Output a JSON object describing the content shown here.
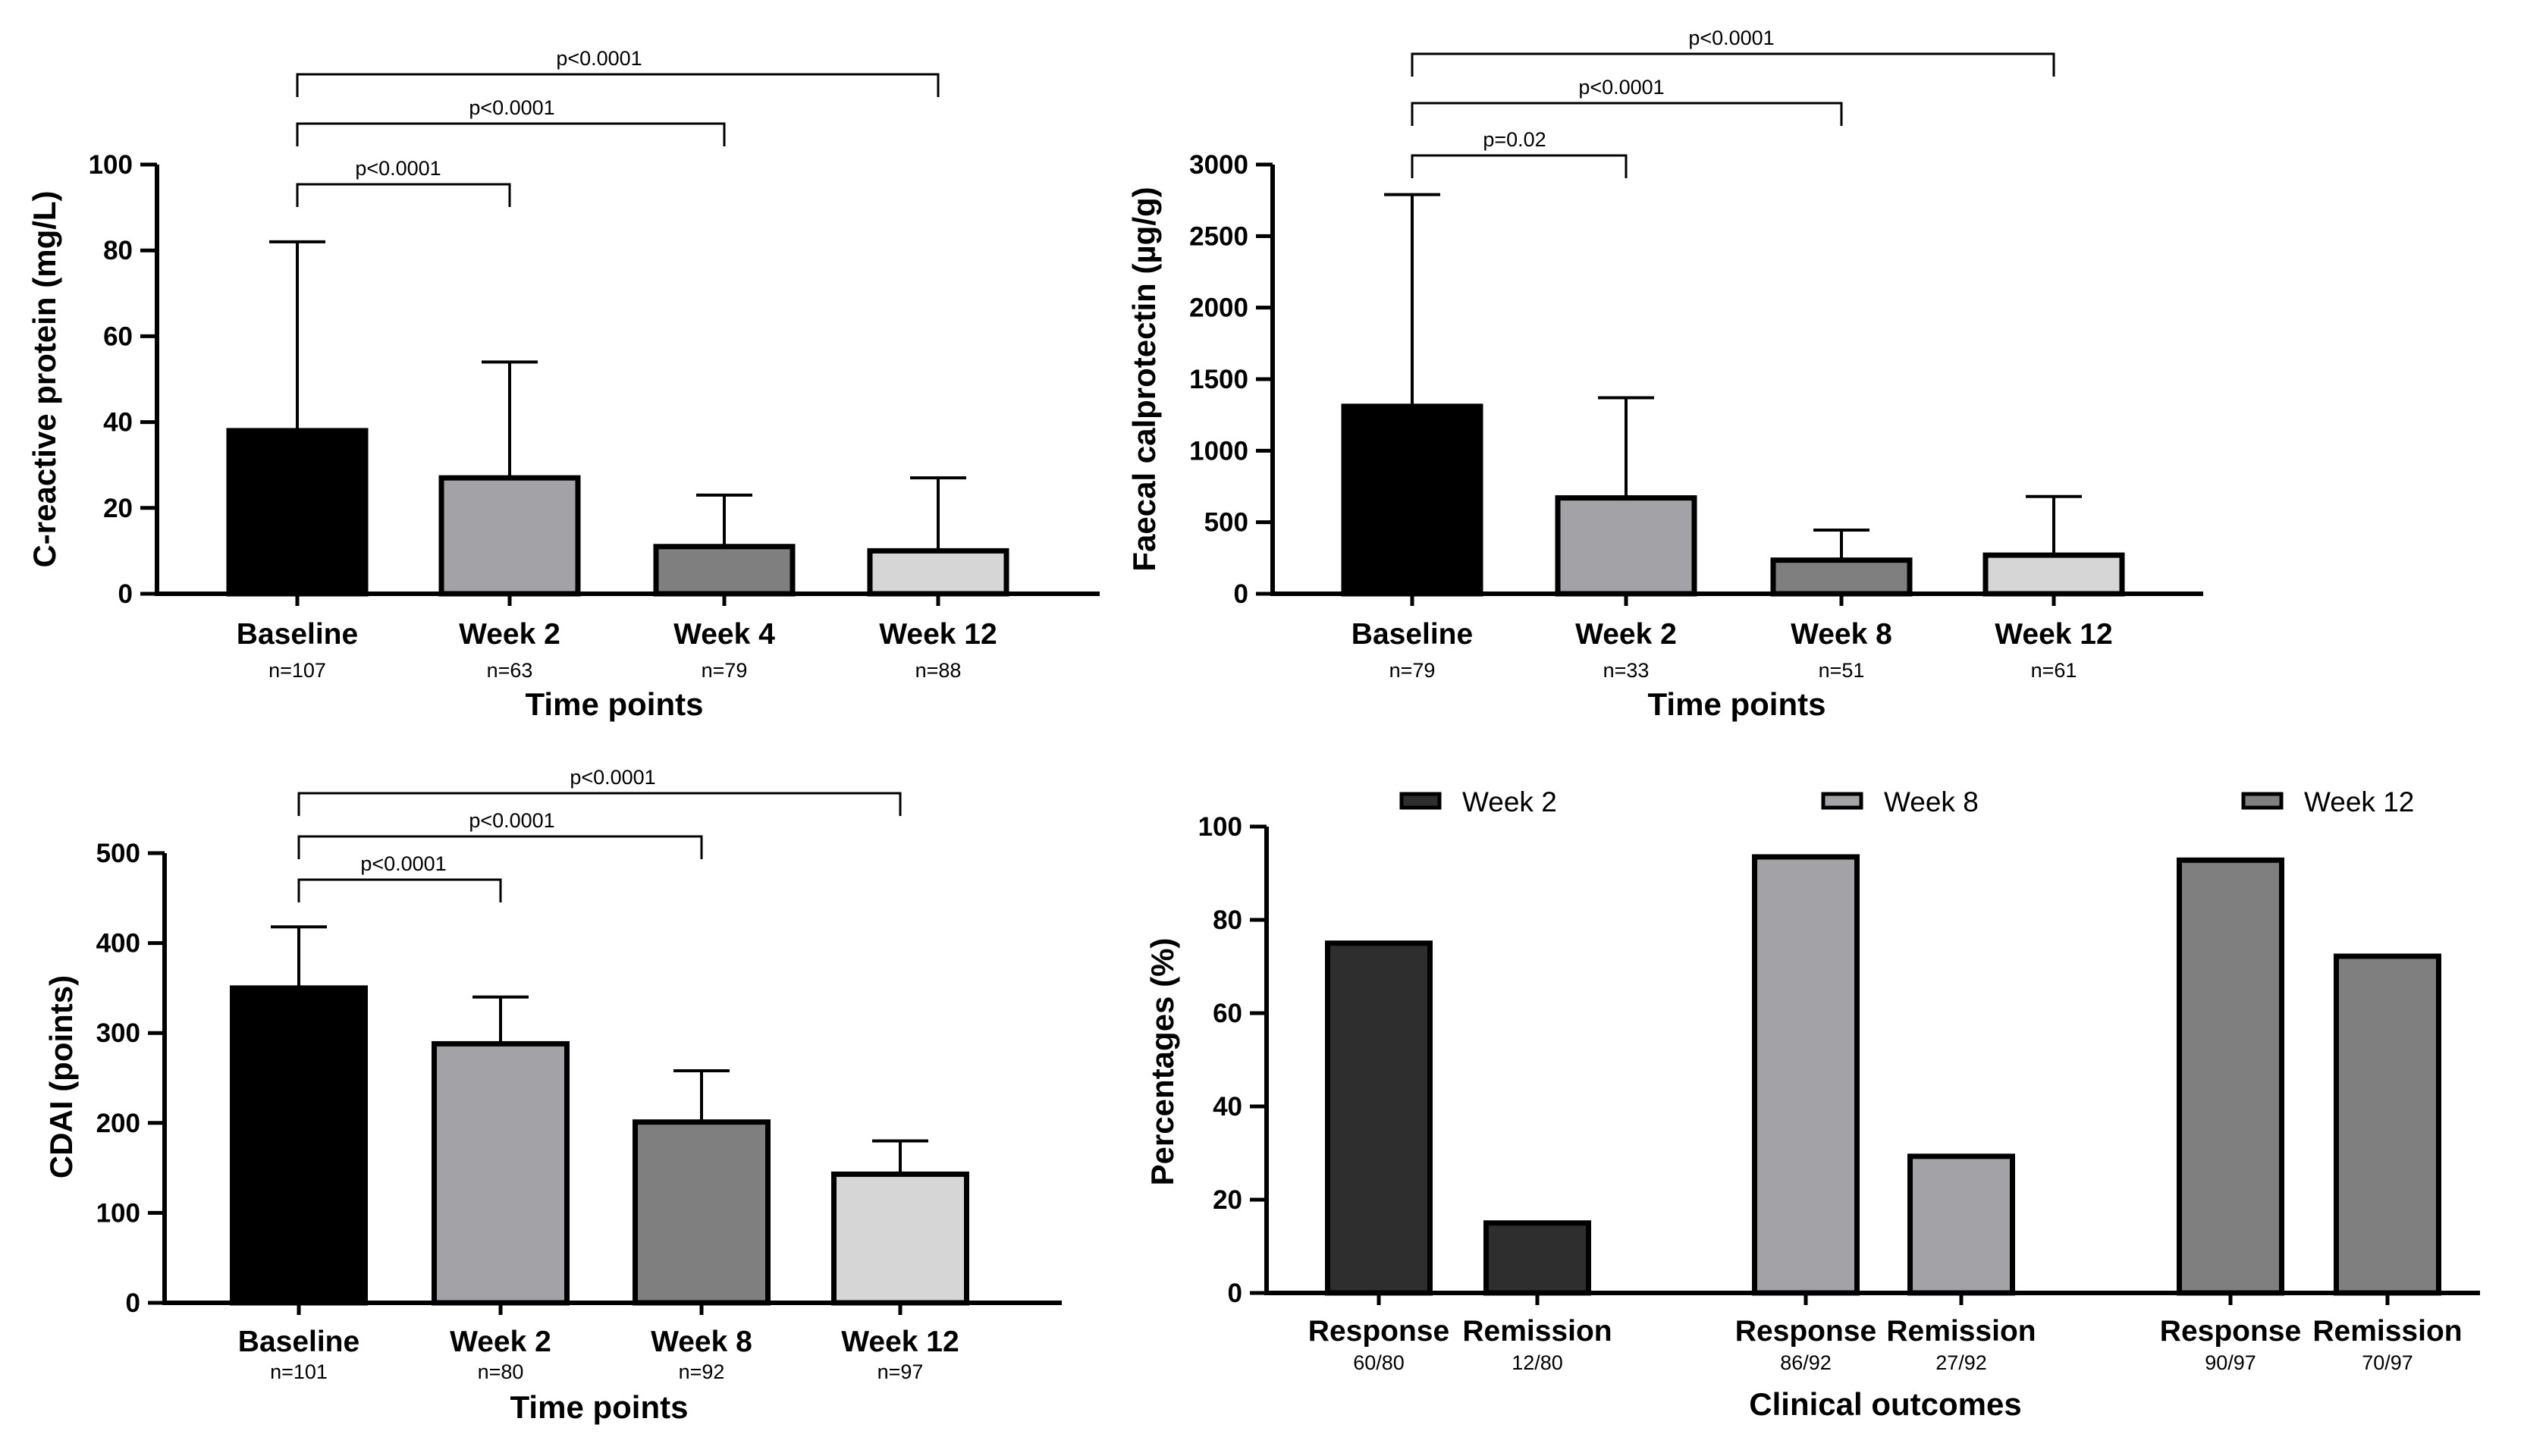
{
  "chart_data": [
    {
      "type": "bar",
      "ylabel": "C-reactive protein (mg/L)",
      "xlabel": "Time points",
      "ylim": [
        0,
        100
      ],
      "yticks": [
        0,
        20,
        40,
        60,
        80,
        100
      ],
      "categories": [
        "Baseline",
        "Week 2",
        "Week 4",
        "Week 12"
      ],
      "n_labels": [
        "n=107",
        "n=63",
        "n=79",
        "n=88"
      ],
      "values": [
        38,
        27,
        11,
        10
      ],
      "error_upper": [
        82,
        54,
        23,
        27
      ],
      "colors": [
        "#000000",
        "#a3a3a7",
        "#7f7f7f",
        "#d6d6d6"
      ],
      "significance": [
        {
          "from": 0,
          "to": 1,
          "label": "p<0.0001"
        },
        {
          "from": 0,
          "to": 2,
          "label": "p<0.0001"
        },
        {
          "from": 0,
          "to": 3,
          "label": "p<0.0001"
        }
      ]
    },
    {
      "type": "bar",
      "ylabel": "Faecal calprotectin (µg/g)",
      "xlabel": "Time points",
      "ylim": [
        0,
        3000
      ],
      "yticks": [
        0,
        500,
        1000,
        1500,
        2000,
        2500,
        3000
      ],
      "categories": [
        "Baseline",
        "Week 2",
        "Week 8",
        "Week 12"
      ],
      "n_labels": [
        "n=79",
        "n=33",
        "n=51",
        "n=61"
      ],
      "values": [
        1310,
        670,
        235,
        270
      ],
      "error_upper": [
        2790,
        1370,
        445,
        680
      ],
      "colors": [
        "#000000",
        "#a3a3a7",
        "#7f7f7f",
        "#d6d6d6"
      ],
      "significance": [
        {
          "from": 0,
          "to": 1,
          "label": "p=0.02"
        },
        {
          "from": 0,
          "to": 2,
          "label": "p<0.0001"
        },
        {
          "from": 0,
          "to": 3,
          "label": "p<0.0001"
        }
      ]
    },
    {
      "type": "bar",
      "ylabel": "CDAI (points)",
      "xlabel": "Time points",
      "ylim": [
        0,
        500
      ],
      "yticks": [
        0,
        100,
        200,
        300,
        400,
        500
      ],
      "categories": [
        "Baseline",
        "Week 2",
        "Week 8",
        "Week 12"
      ],
      "n_labels": [
        "n=101",
        "n=80",
        "n=92",
        "n=97"
      ],
      "values": [
        350,
        288,
        201,
        143
      ],
      "error_upper": [
        418,
        340,
        258,
        180
      ],
      "colors": [
        "#000000",
        "#a3a3a7",
        "#7f7f7f",
        "#d6d6d6"
      ],
      "significance": [
        {
          "from": 0,
          "to": 1,
          "label": "p<0.0001"
        },
        {
          "from": 0,
          "to": 2,
          "label": "p<0.0001"
        },
        {
          "from": 0,
          "to": 3,
          "label": "p<0.0001"
        }
      ]
    },
    {
      "type": "bar",
      "ylabel": "Percentages (%)",
      "xlabel": "Clinical outcomes",
      "ylim": [
        0,
        100
      ],
      "yticks": [
        0,
        20,
        40,
        60,
        80,
        100
      ],
      "legend": [
        {
          "name": "Week 2",
          "color": "#2e2e2e"
        },
        {
          "name": "Week 8",
          "color": "#a3a3a7"
        },
        {
          "name": "Week 12",
          "color": "#7f7f7f"
        }
      ],
      "bars": [
        {
          "series": "Week 2",
          "category": "Response",
          "fraction": "60/80",
          "value": 75
        },
        {
          "series": "Week 2",
          "category": "Remission",
          "fraction": "12/80",
          "value": 15
        },
        {
          "series": "Week 8",
          "category": "Response",
          "fraction": "86/92",
          "value": 93.5
        },
        {
          "series": "Week 8",
          "category": "Remission",
          "fraction": "27/92",
          "value": 29.3
        },
        {
          "series": "Week 12",
          "category": "Response",
          "fraction": "90/97",
          "value": 92.8
        },
        {
          "series": "Week 12",
          "category": "Remission",
          "fraction": "70/97",
          "value": 72.2
        }
      ]
    }
  ]
}
